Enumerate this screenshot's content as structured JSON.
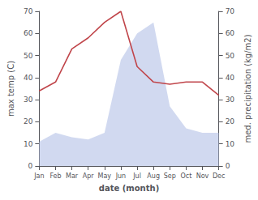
{
  "chart_data": {
    "type": "line",
    "xlabel": "date (month)",
    "ylabel": "max temp (C)",
    "y2label": "med. precipitation (kg/m2)",
    "categories": [
      "Jan",
      "Feb",
      "Mar",
      "Apr",
      "May",
      "Jun",
      "Jul",
      "Aug",
      "Sep",
      "Oct",
      "Nov",
      "Dec"
    ],
    "series": [
      {
        "type": "area",
        "axis": "y2",
        "color": "#b8c4e8",
        "values": [
          11,
          15,
          13,
          12,
          15,
          48,
          60,
          65,
          27,
          17,
          15,
          15
        ]
      },
      {
        "type": "line",
        "color": "#c0454a",
        "values": [
          34,
          38,
          53,
          58,
          65,
          70,
          45,
          38,
          37,
          38,
          38,
          32
        ]
      }
    ],
    "ylim": [
      0,
      70
    ],
    "yticks": [
      0,
      10,
      20,
      30,
      40,
      50,
      60,
      70
    ],
    "y2lim": [
      0,
      70
    ],
    "y2ticks": [
      0,
      10,
      20,
      30,
      40,
      50,
      60,
      70
    ],
    "grid": false
  }
}
